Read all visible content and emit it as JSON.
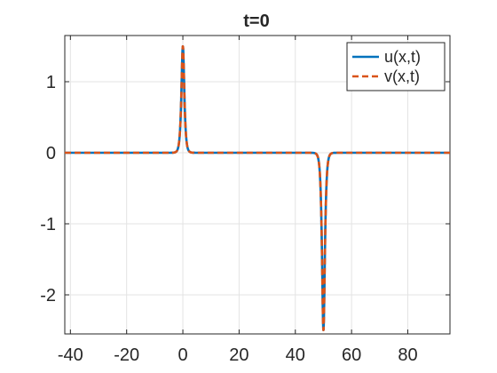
{
  "chart_data": {
    "type": "line",
    "title": "t=0",
    "xlabel": "",
    "ylabel": "",
    "xlim": [
      -42,
      95
    ],
    "ylim": [
      -2.55,
      1.65
    ],
    "x_ticks": [
      -40,
      -20,
      0,
      20,
      40,
      60,
      80
    ],
    "x_tick_labels": [
      "-40",
      "-20",
      "0",
      "20",
      "40",
      "60",
      "80"
    ],
    "y_ticks": [
      -2,
      -1,
      0,
      1
    ],
    "y_tick_labels": [
      "-2",
      "-1",
      "0",
      "1"
    ],
    "grid": true,
    "legend_position": "top-right",
    "series": [
      {
        "name": "u(x,t)",
        "color": "#0072BD",
        "style": "solid",
        "x": [
          -42,
          -20,
          0,
          1,
          1.5,
          2,
          3,
          5,
          10,
          20,
          30,
          40,
          45,
          48,
          49,
          49.5,
          50,
          50.5,
          51,
          52,
          55,
          60,
          70,
          80,
          95
        ],
        "y": [
          0,
          0,
          0,
          0,
          0,
          0,
          0,
          0,
          0,
          0,
          0,
          0,
          0,
          0,
          0,
          0,
          0,
          0,
          0,
          0,
          0,
          0,
          0,
          0,
          0
        ],
        "profile": "sech",
        "pulses": [
          {
            "center": 0,
            "amplitude": 1.5,
            "width": 0.45
          },
          {
            "center": 50,
            "amplitude": -2.5,
            "width": 0.45
          }
        ]
      },
      {
        "name": "v(x,t)",
        "color": "#D95319",
        "style": "dashed",
        "profile": "sech",
        "pulses": [
          {
            "center": 0,
            "amplitude": 1.5,
            "width": 0.45
          },
          {
            "center": 50,
            "amplitude": -2.5,
            "width": 0.45
          }
        ]
      }
    ]
  }
}
